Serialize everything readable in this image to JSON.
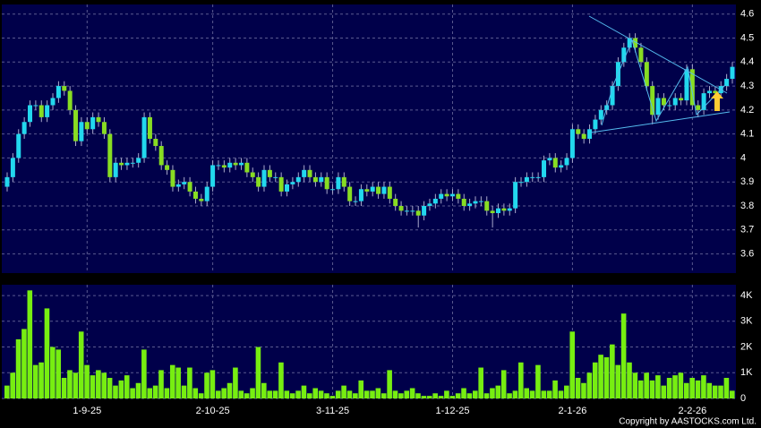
{
  "chart_data": [
    {
      "type": "candlestick",
      "categories": [
        null,
        null,
        null,
        null,
        null,
        null,
        null,
        null,
        null,
        null,
        null,
        null,
        null,
        null,
        "1-9-25",
        null,
        null,
        null,
        null,
        null,
        null,
        null,
        null,
        null,
        null,
        null,
        null,
        null,
        null,
        null,
        null,
        null,
        null,
        null,
        null,
        null,
        "2-10-25",
        null,
        null,
        null,
        null,
        null,
        null,
        null,
        null,
        null,
        null,
        null,
        null,
        null,
        null,
        null,
        null,
        null,
        null,
        null,
        null,
        "3-11-25",
        null,
        null,
        null,
        null,
        null,
        null,
        null,
        null,
        null,
        null,
        null,
        null,
        null,
        null,
        null,
        null,
        null,
        null,
        null,
        null,
        "1-12-25",
        null,
        null,
        null,
        null,
        null,
        null,
        null,
        null,
        null,
        null,
        null,
        null,
        null,
        null,
        null,
        null,
        null,
        null,
        null,
        null,
        "2-1-26",
        null,
        null,
        null,
        null,
        null,
        null,
        null,
        null,
        null,
        null,
        null,
        null,
        null,
        null,
        null,
        null,
        null,
        null,
        null,
        null,
        "2-2-26",
        null,
        null,
        null,
        null,
        null,
        null,
        null
      ],
      "open": [
        3.88,
        3.92,
        4.0,
        4.1,
        4.15,
        4.22,
        4.22,
        4.17,
        4.22,
        4.25,
        4.3,
        4.28,
        4.2,
        4.07,
        4.15,
        4.12,
        4.17,
        4.15,
        4.1,
        3.92,
        3.98,
        3.97,
        3.98,
        3.98,
        4.0,
        4.17,
        4.08,
        4.05,
        3.97,
        3.95,
        3.88,
        3.89,
        3.9,
        3.86,
        3.83,
        3.82,
        3.88,
        3.97,
        3.97,
        3.96,
        3.98,
        3.97,
        3.98,
        3.94,
        3.92,
        3.88,
        3.95,
        3.92,
        3.92,
        3.86,
        3.89,
        3.9,
        3.92,
        3.95,
        3.92,
        3.9,
        3.92,
        3.87,
        3.87,
        3.92,
        3.88,
        3.82,
        3.82,
        3.87,
        3.86,
        3.88,
        3.85,
        3.88,
        3.83,
        3.8,
        3.78,
        3.78,
        3.78,
        3.76,
        3.8,
        3.81,
        3.83,
        3.85,
        3.84,
        3.85,
        3.83,
        3.8,
        3.81,
        3.82,
        3.82,
        3.78,
        3.77,
        3.79,
        3.78,
        3.79,
        3.9,
        3.9,
        3.92,
        3.92,
        3.92,
        3.99,
        4.0,
        3.96,
        3.97,
        4.0,
        4.12,
        4.1,
        4.08,
        4.12,
        4.16,
        4.2,
        4.22,
        4.3,
        4.4,
        4.46,
        4.5,
        4.46,
        4.4,
        4.3,
        4.18,
        4.25,
        4.22,
        4.22,
        4.25,
        4.24,
        4.37,
        4.22,
        4.2,
        4.27,
        4.28,
        4.27,
        4.3,
        4.33
      ],
      "high": [
        3.94,
        4.02,
        4.12,
        4.17,
        4.24,
        4.24,
        4.24,
        4.24,
        4.27,
        4.32,
        4.32,
        4.3,
        4.22,
        4.17,
        4.17,
        4.19,
        4.19,
        4.17,
        4.12,
        4.0,
        4.0,
        4.0,
        4.0,
        4.02,
        4.19,
        4.19,
        4.1,
        4.07,
        3.99,
        3.97,
        3.91,
        3.92,
        3.92,
        3.88,
        3.85,
        3.9,
        3.99,
        3.99,
        3.99,
        4.0,
        4.0,
        4.0,
        4.0,
        3.96,
        3.94,
        3.97,
        3.97,
        3.94,
        3.94,
        3.91,
        3.92,
        3.94,
        3.97,
        3.97,
        3.94,
        3.94,
        3.94,
        3.89,
        3.94,
        3.94,
        3.9,
        3.84,
        3.89,
        3.89,
        3.9,
        3.9,
        3.9,
        3.9,
        3.85,
        3.82,
        3.8,
        3.8,
        3.8,
        3.82,
        3.83,
        3.85,
        3.87,
        3.87,
        3.87,
        3.87,
        3.85,
        3.83,
        3.84,
        3.84,
        3.84,
        3.8,
        3.81,
        3.81,
        3.81,
        3.92,
        3.92,
        3.94,
        3.94,
        3.94,
        4.01,
        4.02,
        4.02,
        3.99,
        4.02,
        4.14,
        4.14,
        4.12,
        4.14,
        4.18,
        4.22,
        4.24,
        4.32,
        4.42,
        4.48,
        4.52,
        4.52,
        4.48,
        4.42,
        4.32,
        4.27,
        4.27,
        4.24,
        4.27,
        4.27,
        4.39,
        4.39,
        4.24,
        4.29,
        4.3,
        4.3,
        4.32,
        4.35,
        4.4
      ],
      "low": [
        3.86,
        3.9,
        3.98,
        4.08,
        4.13,
        4.2,
        4.15,
        4.15,
        4.2,
        4.23,
        4.26,
        4.18,
        4.05,
        4.05,
        4.1,
        4.1,
        4.13,
        4.08,
        3.9,
        3.9,
        3.95,
        3.95,
        3.96,
        3.96,
        3.98,
        4.06,
        4.03,
        3.95,
        3.93,
        3.86,
        3.86,
        3.87,
        3.84,
        3.81,
        3.8,
        3.8,
        3.86,
        3.95,
        3.94,
        3.94,
        3.95,
        3.95,
        3.92,
        3.9,
        3.86,
        3.86,
        3.9,
        3.9,
        3.84,
        3.84,
        3.87,
        3.88,
        3.9,
        3.9,
        3.88,
        3.88,
        3.85,
        3.85,
        3.85,
        3.86,
        3.8,
        3.8,
        3.8,
        3.84,
        3.84,
        3.83,
        3.83,
        3.81,
        3.78,
        3.76,
        3.76,
        3.76,
        3.71,
        3.74,
        3.78,
        3.79,
        3.81,
        3.82,
        3.82,
        3.81,
        3.78,
        3.78,
        3.79,
        3.8,
        3.76,
        3.71,
        3.75,
        3.76,
        3.76,
        3.77,
        3.88,
        3.88,
        3.9,
        3.9,
        3.9,
        3.97,
        3.94,
        3.94,
        3.95,
        3.98,
        4.08,
        4.06,
        4.06,
        4.1,
        4.14,
        4.18,
        4.2,
        4.28,
        4.38,
        4.44,
        4.44,
        4.38,
        4.28,
        4.14,
        4.16,
        4.2,
        4.2,
        4.2,
        4.22,
        4.22,
        4.2,
        4.17,
        4.18,
        4.25,
        4.25,
        4.25,
        4.28,
        4.31
      ],
      "close": [
        3.92,
        4.0,
        4.1,
        4.15,
        4.22,
        4.22,
        4.17,
        4.22,
        4.25,
        4.3,
        4.28,
        4.2,
        4.07,
        4.15,
        4.12,
        4.17,
        4.15,
        4.1,
        3.92,
        3.98,
        3.97,
        3.98,
        3.98,
        4.0,
        4.17,
        4.08,
        4.05,
        3.97,
        3.95,
        3.88,
        3.89,
        3.9,
        3.86,
        3.83,
        3.82,
        3.88,
        3.97,
        3.97,
        3.96,
        3.98,
        3.97,
        3.98,
        3.94,
        3.92,
        3.88,
        3.95,
        3.92,
        3.92,
        3.86,
        3.89,
        3.9,
        3.92,
        3.95,
        3.92,
        3.9,
        3.92,
        3.87,
        3.87,
        3.92,
        3.88,
        3.82,
        3.82,
        3.87,
        3.86,
        3.88,
        3.85,
        3.88,
        3.83,
        3.8,
        3.78,
        3.78,
        3.78,
        3.76,
        3.8,
        3.81,
        3.83,
        3.85,
        3.84,
        3.85,
        3.83,
        3.8,
        3.81,
        3.82,
        3.82,
        3.78,
        3.77,
        3.79,
        3.78,
        3.79,
        3.9,
        3.9,
        3.92,
        3.92,
        3.92,
        3.99,
        4.0,
        3.96,
        3.97,
        4.0,
        4.12,
        4.1,
        4.08,
        4.12,
        4.16,
        4.2,
        4.22,
        4.3,
        4.4,
        4.46,
        4.5,
        4.46,
        4.4,
        4.3,
        4.18,
        4.25,
        4.22,
        4.22,
        4.25,
        4.24,
        4.37,
        4.22,
        4.2,
        4.27,
        4.28,
        4.27,
        4.3,
        4.33,
        4.38
      ],
      "up_color": "#22d8ee",
      "down_color": "#88dd22",
      "ylim": [
        3.52,
        4.64
      ],
      "yticks": [
        3.6,
        3.7,
        3.8,
        3.9,
        4,
        4.1,
        4.2,
        4.3,
        4.4,
        4.5,
        4.6
      ],
      "grid": true
    },
    {
      "type": "bar",
      "color": "#77ee11",
      "values": [
        500,
        1000,
        2300,
        2700,
        4200,
        1300,
        1400,
        3500,
        2000,
        1900,
        800,
        1100,
        1000,
        2600,
        1300,
        900,
        1100,
        1000,
        800,
        500,
        700,
        900,
        400,
        600,
        1900,
        400,
        500,
        1100,
        400,
        1300,
        1200,
        500,
        1200,
        400,
        200,
        1000,
        1100,
        300,
        400,
        600,
        1200,
        300,
        200,
        400,
        2000,
        600,
        300,
        300,
        1400,
        300,
        200,
        300,
        500,
        200,
        400,
        300,
        200,
        100,
        300,
        500,
        300,
        200,
        700,
        300,
        300,
        400,
        200,
        1100,
        300,
        200,
        300,
        400,
        200,
        100,
        100,
        200,
        100,
        300,
        100,
        200,
        400,
        200,
        300,
        1200,
        200,
        400,
        500,
        1100,
        200,
        300,
        1400,
        400,
        300,
        1300,
        300,
        300,
        700,
        300,
        500,
        2600,
        800,
        600,
        1000,
        1400,
        1700,
        1600,
        2100,
        1300,
        3300,
        1400,
        1000,
        700,
        1000,
        700,
        900,
        500,
        800,
        900,
        1000,
        600,
        800,
        700,
        900,
        600,
        500,
        500,
        800,
        300
      ],
      "ylim": [
        0,
        4420
      ],
      "yticks": [
        0,
        {
          "value": 1000,
          "label": "1K"
        },
        {
          "value": 2000,
          "label": "2K"
        },
        {
          "value": 3000,
          "label": "3K"
        },
        {
          "value": 4000,
          "label": "4K"
        }
      ],
      "grid": true
    }
  ],
  "footer": "Copyright by AASTOCKS.com Ltd."
}
